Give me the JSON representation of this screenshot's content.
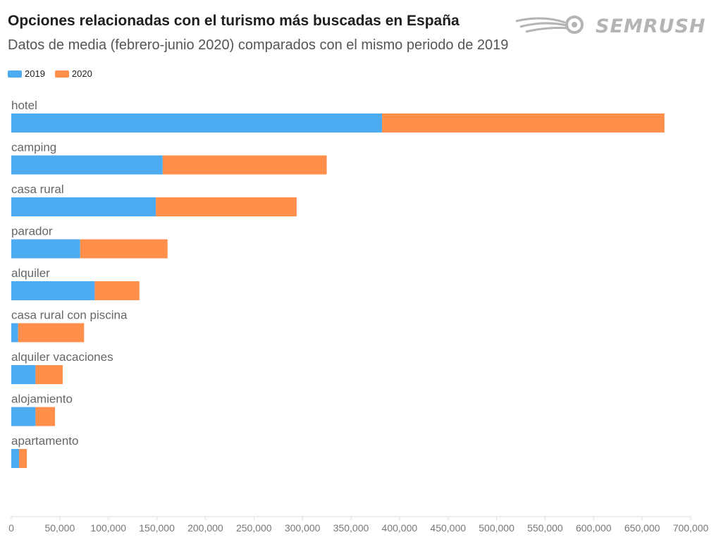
{
  "title": "Opciones relacionadas con el turismo más buscadas en España",
  "subtitle": "Datos de media (febrero-junio 2020) comparados con el mismo periodo de 2019",
  "brand": {
    "name": "SEMRUSH",
    "color": "#b4b4b4",
    "icon": "rocket-comet-icon"
  },
  "colors": {
    "2019": "#4dabf2",
    "2020": "#ff8f4b"
  },
  "chart_data": {
    "type": "bar",
    "orientation": "horizontal",
    "stacked": true,
    "categories": [
      "hotel",
      "camping",
      "casa rural",
      "parador",
      "alquiler",
      "casa rural con piscina",
      "alquiler vacaciones",
      "alojamiento",
      "apartamento"
    ],
    "series": [
      {
        "name": "2019",
        "color": "#4dabf2",
        "values": [
          382000,
          156000,
          149000,
          71000,
          86000,
          7000,
          25000,
          25000,
          8000
        ]
      },
      {
        "name": "2020",
        "color": "#ff8f4b",
        "values": [
          291000,
          169000,
          145000,
          90000,
          46000,
          68000,
          28000,
          20000,
          8000
        ]
      }
    ],
    "xlim": [
      0,
      700000
    ],
    "xticks": [
      "0",
      "50,000",
      "100,000",
      "150,000",
      "200,000",
      "250,000",
      "300,000",
      "350,000",
      "400,000",
      "450,000",
      "500,000",
      "550,000",
      "600,000",
      "650,000",
      "700,000"
    ],
    "xtick_values": [
      0,
      50000,
      100000,
      150000,
      200000,
      250000,
      300000,
      350000,
      400000,
      450000,
      500000,
      550000,
      600000,
      650000,
      700000
    ],
    "legend_position": "top-left",
    "grid": false
  }
}
